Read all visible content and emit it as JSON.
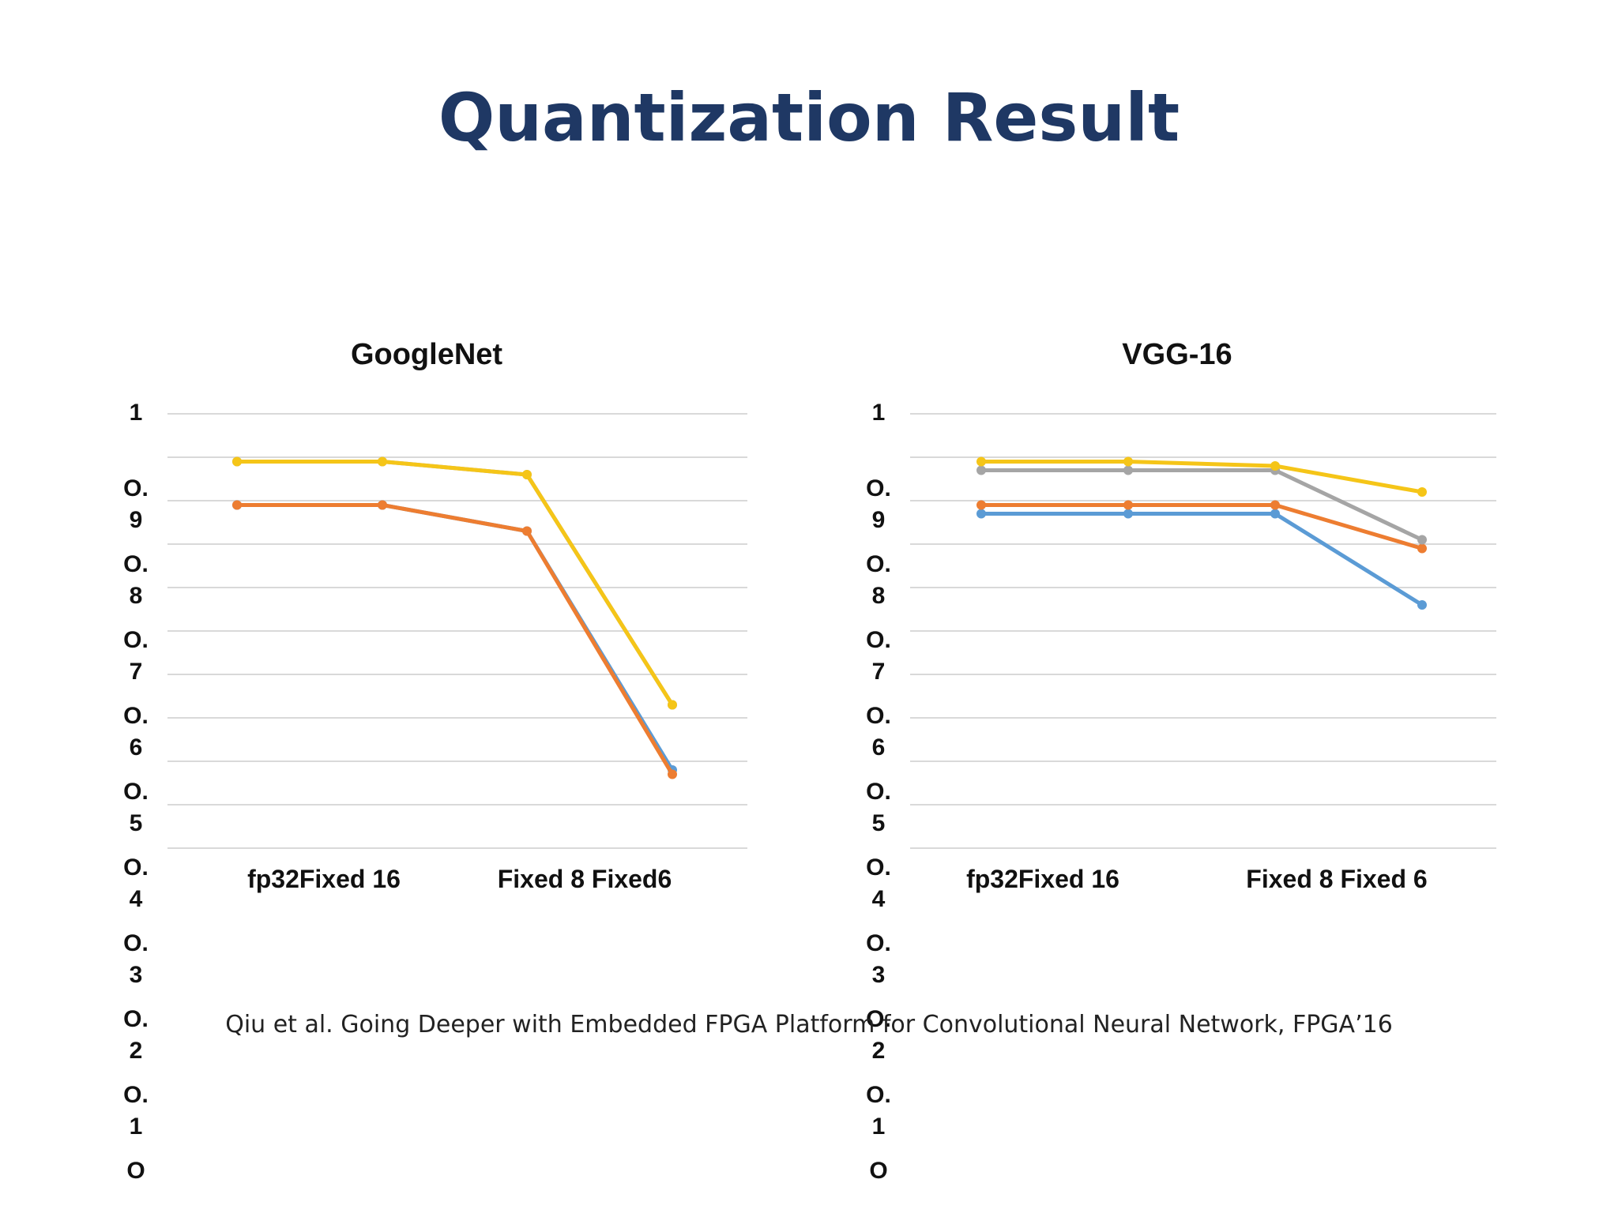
{
  "slide": {
    "title": "Quantization Result",
    "citation": "Qiu et al.  Going Deeper with Embedded FPGA Platform for Convolutional Neural Network, FPGA’16"
  },
  "colors": {
    "series_blue": "#5b9bd5",
    "series_orange": "#ed7d31",
    "series_gray": "#a5a5a5",
    "series_yellow": "#f5c518",
    "gridline": "#d9d9d9"
  },
  "chart_data": [
    {
      "type": "line",
      "title": "GoogleNet",
      "categories": [
        "fp32",
        "Fixed 16",
        "Fixed 8",
        "Fixed6"
      ],
      "category_labels": [
        "fp32Fixed 16",
        "Fixed 8 Fixed6"
      ],
      "ylim": [
        0,
        1
      ],
      "yticks": [
        1,
        0.9,
        0.8,
        0.7,
        0.6,
        0.5,
        0.4,
        0.3,
        0.2,
        0.1,
        0
      ],
      "ytick_lines": [
        [
          "1"
        ],
        [
          "O.",
          "9"
        ],
        [
          "O.",
          "8"
        ],
        [
          "O.",
          "7"
        ],
        [
          "O.",
          "6"
        ],
        [
          "O.",
          "5"
        ],
        [
          "O.",
          "4"
        ],
        [
          "O.",
          "3"
        ],
        [
          "O.",
          "2"
        ],
        [
          "O.",
          "1"
        ],
        [
          "O"
        ]
      ],
      "grid": true,
      "series": [
        {
          "name": "series-blue",
          "color": "#5b9bd5",
          "values": [
            0.79,
            0.79,
            0.73,
            0.18
          ]
        },
        {
          "name": "series-gray",
          "color": "#a5a5a5",
          "values": [
            0.89,
            0.89,
            0.86,
            0.33
          ]
        },
        {
          "name": "series-orange",
          "color": "#ed7d31",
          "values": [
            0.79,
            0.79,
            0.73,
            0.17
          ]
        },
        {
          "name": "series-yellow",
          "color": "#f5c518",
          "values": [
            0.89,
            0.89,
            0.86,
            0.33
          ]
        }
      ]
    },
    {
      "type": "line",
      "title": "VGG-16",
      "categories": [
        "fp32",
        "Fixed 16",
        "Fixed 8",
        "Fixed 6"
      ],
      "category_labels": [
        "fp32Fixed 16",
        "Fixed 8 Fixed 6"
      ],
      "ylim": [
        0,
        1
      ],
      "yticks": [
        1,
        0.9,
        0.8,
        0.7,
        0.6,
        0.5,
        0.4,
        0.3,
        0.2,
        0.1,
        0
      ],
      "ytick_lines": [
        [
          "1"
        ],
        [
          "O.",
          "9"
        ],
        [
          "O.",
          "8"
        ],
        [
          "O.",
          "7"
        ],
        [
          "O.",
          "6"
        ],
        [
          "O.",
          "5"
        ],
        [
          "O.",
          "4"
        ],
        [
          "O.",
          "3"
        ],
        [
          "O.",
          "2"
        ],
        [
          "O.",
          "1"
        ],
        [
          "O"
        ]
      ],
      "grid": true,
      "series": [
        {
          "name": "series-blue",
          "color": "#5b9bd5",
          "values": [
            0.77,
            0.77,
            0.77,
            0.56
          ]
        },
        {
          "name": "series-orange",
          "color": "#ed7d31",
          "values": [
            0.79,
            0.79,
            0.79,
            0.69
          ]
        },
        {
          "name": "series-gray",
          "color": "#a5a5a5",
          "values": [
            0.87,
            0.87,
            0.87,
            0.71
          ]
        },
        {
          "name": "series-yellow",
          "color": "#f5c518",
          "values": [
            0.89,
            0.89,
            0.88,
            0.82
          ]
        }
      ]
    }
  ]
}
